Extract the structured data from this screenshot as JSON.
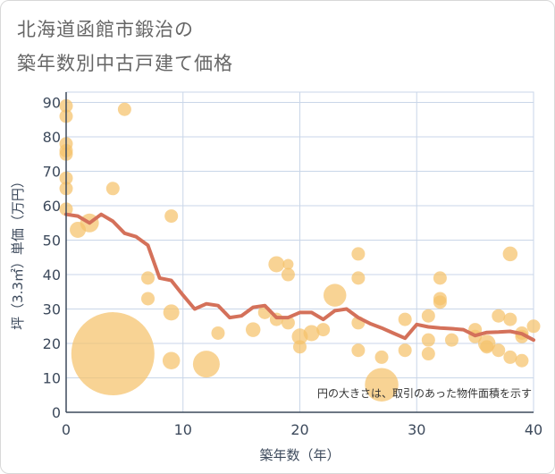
{
  "title_line1": "北海道函館市鍛治の",
  "title_line2": "築年数別中古戸建て価格",
  "colors": {
    "bubble": "#f5c26b",
    "trend": "#d4715a",
    "grid": "#c9d6e8",
    "axis": "#3d4a5c"
  },
  "chart_data": {
    "type": "scatter",
    "xlabel": "築年数（年）",
    "ylabel": "坪（3.3㎡）単価（万円）",
    "xlim": [
      0,
      40
    ],
    "ylim": [
      0,
      93
    ],
    "xticks": [
      0,
      10,
      20,
      30,
      40
    ],
    "yticks": [
      0,
      10,
      20,
      30,
      40,
      50,
      60,
      70,
      80,
      90
    ],
    "grid": true,
    "note": "円の大きさは、取引のあった物件面積を示す",
    "points": [
      {
        "x": 0,
        "y": 89,
        "s": 1
      },
      {
        "x": 0,
        "y": 86,
        "s": 1
      },
      {
        "x": 0,
        "y": 78,
        "s": 1
      },
      {
        "x": 0,
        "y": 76,
        "s": 1
      },
      {
        "x": 0,
        "y": 75,
        "s": 1
      },
      {
        "x": 0,
        "y": 68,
        "s": 1
      },
      {
        "x": 0,
        "y": 65,
        "s": 1
      },
      {
        "x": 0,
        "y": 59,
        "s": 1
      },
      {
        "x": 1,
        "y": 53,
        "s": 1.2
      },
      {
        "x": 2,
        "y": 55,
        "s": 1.4
      },
      {
        "x": 4,
        "y": 65,
        "s": 1
      },
      {
        "x": 4,
        "y": 17,
        "s": 6.2
      },
      {
        "x": 5,
        "y": 88,
        "s": 1
      },
      {
        "x": 7,
        "y": 39,
        "s": 1
      },
      {
        "x": 7,
        "y": 33,
        "s": 1
      },
      {
        "x": 9,
        "y": 57,
        "s": 1
      },
      {
        "x": 9,
        "y": 29,
        "s": 1.2
      },
      {
        "x": 9,
        "y": 15,
        "s": 1.3
      },
      {
        "x": 12,
        "y": 14,
        "s": 2
      },
      {
        "x": 13,
        "y": 23,
        "s": 1
      },
      {
        "x": 16,
        "y": 24,
        "s": 1.1
      },
      {
        "x": 17,
        "y": 29,
        "s": 1
      },
      {
        "x": 18,
        "y": 43,
        "s": 1.2
      },
      {
        "x": 18,
        "y": 27,
        "s": 1
      },
      {
        "x": 19,
        "y": 43,
        "s": 0.8
      },
      {
        "x": 19,
        "y": 40,
        "s": 1
      },
      {
        "x": 19,
        "y": 26,
        "s": 1
      },
      {
        "x": 20,
        "y": 22,
        "s": 1.2
      },
      {
        "x": 20,
        "y": 19,
        "s": 1
      },
      {
        "x": 21,
        "y": 23,
        "s": 1.2
      },
      {
        "x": 22,
        "y": 24,
        "s": 1
      },
      {
        "x": 23,
        "y": 34,
        "s": 1.7
      },
      {
        "x": 25,
        "y": 46,
        "s": 1
      },
      {
        "x": 25,
        "y": 39,
        "s": 1
      },
      {
        "x": 25,
        "y": 26,
        "s": 1
      },
      {
        "x": 25,
        "y": 18,
        "s": 1
      },
      {
        "x": 27,
        "y": 16,
        "s": 1
      },
      {
        "x": 27,
        "y": 8,
        "s": 2.5
      },
      {
        "x": 29,
        "y": 27,
        "s": 1
      },
      {
        "x": 29,
        "y": 18,
        "s": 1
      },
      {
        "x": 31,
        "y": 28,
        "s": 1
      },
      {
        "x": 31,
        "y": 21,
        "s": 1
      },
      {
        "x": 31,
        "y": 17,
        "s": 1
      },
      {
        "x": 32,
        "y": 39,
        "s": 1
      },
      {
        "x": 32,
        "y": 33,
        "s": 1
      },
      {
        "x": 32,
        "y": 32,
        "s": 1
      },
      {
        "x": 33,
        "y": 21,
        "s": 1
      },
      {
        "x": 35,
        "y": 24,
        "s": 1
      },
      {
        "x": 35,
        "y": 22,
        "s": 1
      },
      {
        "x": 36,
        "y": 20,
        "s": 1.3
      },
      {
        "x": 36,
        "y": 19,
        "s": 1
      },
      {
        "x": 37,
        "y": 28,
        "s": 1
      },
      {
        "x": 37,
        "y": 18,
        "s": 1
      },
      {
        "x": 38,
        "y": 46,
        "s": 1.1
      },
      {
        "x": 38,
        "y": 27,
        "s": 1
      },
      {
        "x": 38,
        "y": 16,
        "s": 1
      },
      {
        "x": 39,
        "y": 23,
        "s": 1
      },
      {
        "x": 39,
        "y": 22,
        "s": 1
      },
      {
        "x": 39,
        "y": 15,
        "s": 1
      },
      {
        "x": 40,
        "y": 25,
        "s": 1
      }
    ],
    "trend": {
      "x": [
        0,
        1,
        2,
        3,
        4,
        5,
        6,
        7,
        8,
        9,
        10,
        11,
        12,
        13,
        14,
        15,
        16,
        17,
        18,
        19,
        20,
        21,
        22,
        23,
        24,
        25,
        26,
        27,
        28,
        29,
        30,
        31,
        32,
        33,
        34,
        35,
        36,
        37,
        38,
        39,
        40
      ],
      "y": [
        57.5,
        57,
        55,
        57.5,
        55.5,
        52,
        51,
        48.5,
        39,
        38.3,
        34,
        30,
        31.5,
        31,
        27.5,
        28,
        30.5,
        31,
        27.5,
        27.5,
        29,
        29,
        27,
        29.5,
        30,
        27.5,
        25.8,
        24.5,
        23,
        21.5,
        25.5,
        24.8,
        24.5,
        24.3,
        24,
        22.3,
        23.2,
        23.3,
        23.5,
        22.8,
        21
      ]
    }
  }
}
